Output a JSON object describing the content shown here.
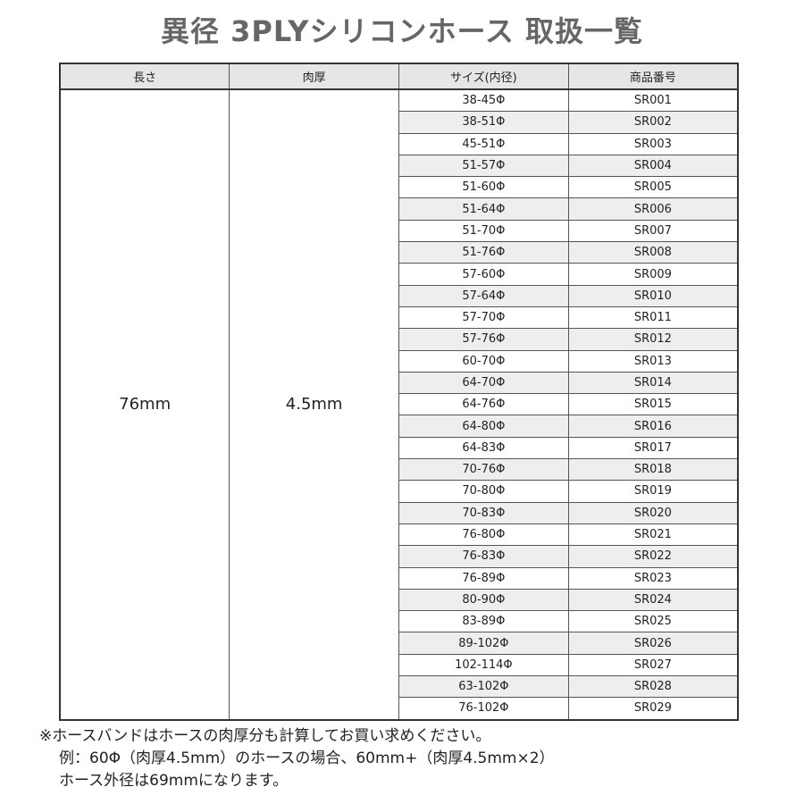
{
  "title": "異径 3PLYシリコンホース 取扱一覧",
  "table": {
    "headers": [
      "長さ",
      "肉厚",
      "サイズ(内径)",
      "商品番号"
    ],
    "length": "76mm",
    "thickness": "4.5mm",
    "rows": [
      {
        "size": "38-45Φ",
        "code": "SR001"
      },
      {
        "size": "38-51Φ",
        "code": "SR002"
      },
      {
        "size": "45-51Φ",
        "code": "SR003"
      },
      {
        "size": "51-57Φ",
        "code": "SR004"
      },
      {
        "size": "51-60Φ",
        "code": "SR005"
      },
      {
        "size": "51-64Φ",
        "code": "SR006"
      },
      {
        "size": "51-70Φ",
        "code": "SR007"
      },
      {
        "size": "51-76Φ",
        "code": "SR008"
      },
      {
        "size": "57-60Φ",
        "code": "SR009"
      },
      {
        "size": "57-64Φ",
        "code": "SR010"
      },
      {
        "size": "57-70Φ",
        "code": "SR011"
      },
      {
        "size": "57-76Φ",
        "code": "SR012"
      },
      {
        "size": "60-70Φ",
        "code": "SR013"
      },
      {
        "size": "64-70Φ",
        "code": "SR014"
      },
      {
        "size": "64-76Φ",
        "code": "SR015"
      },
      {
        "size": "64-80Φ",
        "code": "SR016"
      },
      {
        "size": "64-83Φ",
        "code": "SR017"
      },
      {
        "size": "70-76Φ",
        "code": "SR018"
      },
      {
        "size": "70-80Φ",
        "code": "SR019"
      },
      {
        "size": "70-83Φ",
        "code": "SR020"
      },
      {
        "size": "76-80Φ",
        "code": "SR021"
      },
      {
        "size": "76-83Φ",
        "code": "SR022"
      },
      {
        "size": "76-89Φ",
        "code": "SR023"
      },
      {
        "size": "80-90Φ",
        "code": "SR024"
      },
      {
        "size": "83-89Φ",
        "code": "SR025"
      },
      {
        "size": "89-102Φ",
        "code": "SR026"
      },
      {
        "size": "102-114Φ",
        "code": "SR027"
      },
      {
        "size": "63-102Φ",
        "code": "SR028"
      },
      {
        "size": "76-102Φ",
        "code": "SR029"
      }
    ]
  },
  "notes": [
    "※ホースバンドはホースの肉厚分も計算してお買い求めください。",
    "例：60Φ（肉厚4.5mm）のホースの場合、60mm+（肉厚4.5mm×2）",
    "ホース外径は69mmになります。"
  ]
}
